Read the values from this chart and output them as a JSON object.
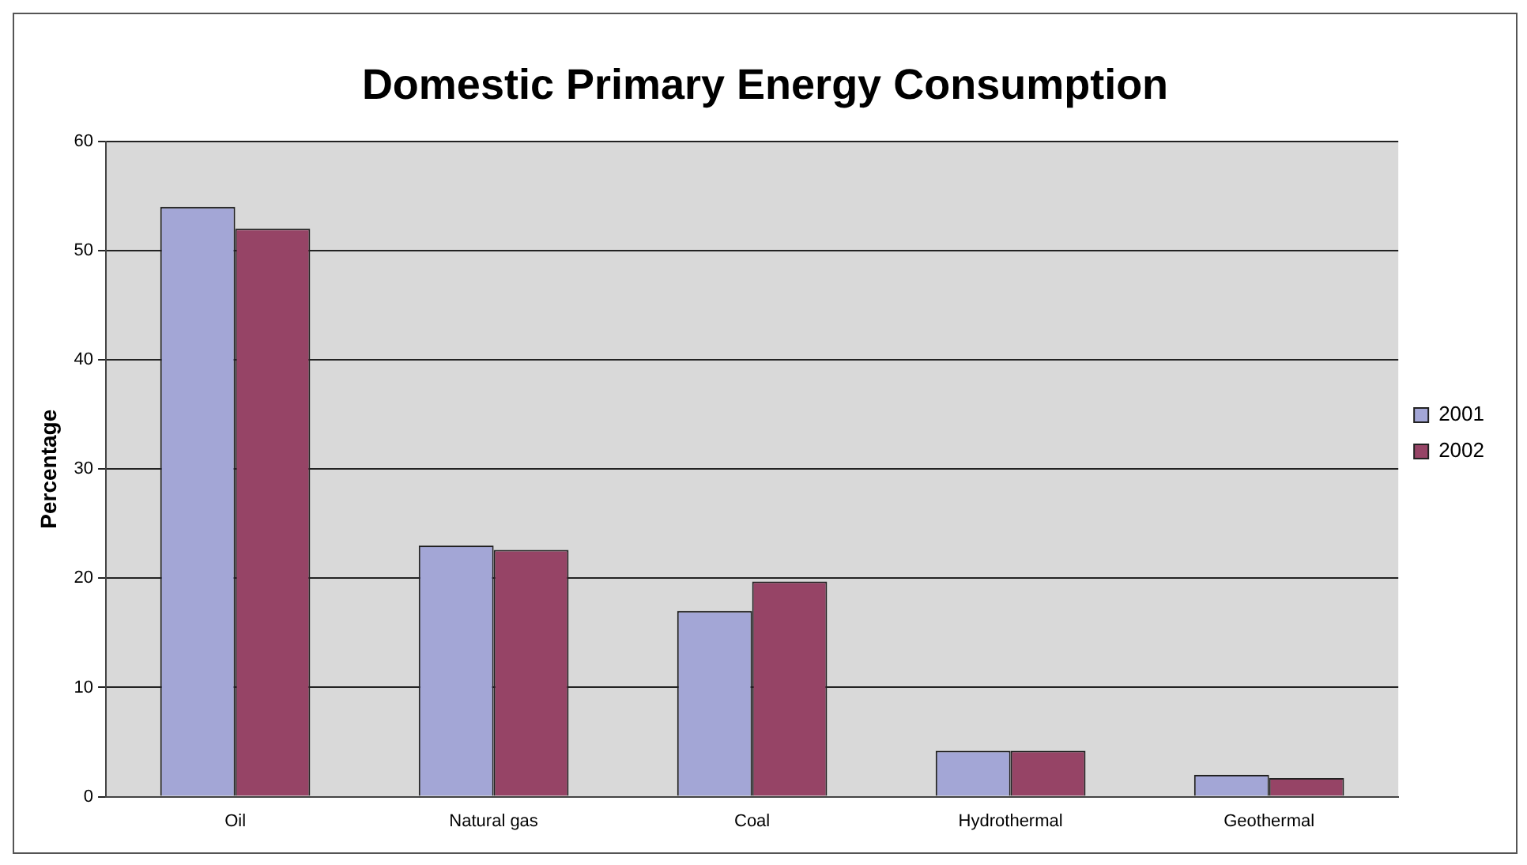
{
  "chart_data": {
    "type": "bar",
    "title": "Domestic Primary Energy Consumption",
    "ylabel": "Percentage",
    "categories": [
      "Oil",
      "Natural gas",
      "Coal",
      "Hydrothermal",
      "Geothermal"
    ],
    "series": [
      {
        "name": "2001",
        "color": "#a3a6d6",
        "values": [
          54,
          23,
          17,
          4.2,
          2.0
        ]
      },
      {
        "name": "2002",
        "color": "#964466",
        "values": [
          52,
          22.6,
          19.7,
          4.2,
          1.7
        ]
      }
    ],
    "ylim": [
      0,
      60
    ],
    "yticks": [
      0,
      10,
      20,
      30,
      40,
      50,
      60
    ],
    "grid": "y",
    "legend": "right"
  }
}
